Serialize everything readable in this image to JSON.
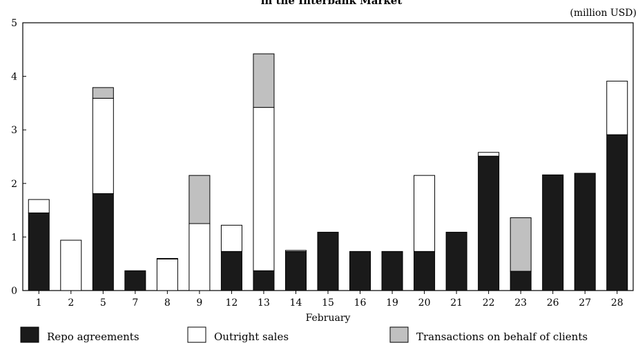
{
  "chart_data": {
    "type": "bar",
    "stacked": true,
    "title": "in the Interbank Market",
    "unit_label": "(million USD)",
    "xlabel": "February",
    "ylabel": "",
    "ylim": [
      0,
      5
    ],
    "yticks": [
      0,
      1,
      2,
      3,
      4,
      5
    ],
    "grid": false,
    "legend_position": "bottom",
    "categories": [
      "1",
      "2",
      "5",
      "7",
      "8",
      "9",
      "12",
      "13",
      "14",
      "15",
      "16",
      "19",
      "20",
      "21",
      "22",
      "23",
      "26",
      "27",
      "28"
    ],
    "series": [
      {
        "name": "Repo agreements",
        "color": "#1a1a1a",
        "values": [
          1.45,
          0,
          1.81,
          0.37,
          0,
          0,
          0.73,
          0.37,
          0.73,
          1.09,
          0.73,
          0.73,
          0.73,
          1.09,
          2.51,
          0.36,
          2.16,
          2.19,
          2.91
        ]
      },
      {
        "name": "Outright sales",
        "color": "#ffffff",
        "values": [
          0.25,
          0.94,
          1.78,
          0,
          0.59,
          1.25,
          0.49,
          3.05,
          0.02,
          0,
          0,
          0,
          1.42,
          0,
          0.07,
          0,
          0,
          0,
          1.0
        ]
      },
      {
        "name": "Transactions on behalf of clients",
        "color": "#c0c0c0",
        "values": [
          0,
          0,
          0.2,
          0,
          0.01,
          0.9,
          0,
          1.0,
          0,
          0,
          0,
          0,
          0,
          0,
          0,
          1.0,
          0,
          0,
          0
        ]
      }
    ]
  }
}
